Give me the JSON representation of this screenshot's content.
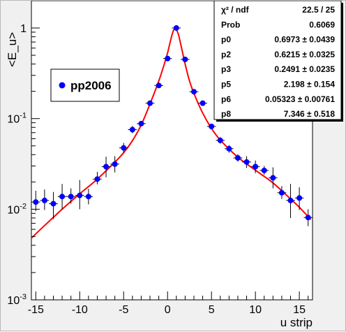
{
  "chart_data": {
    "type": "scatter",
    "xlabel": "u strip",
    "ylabel": "<E_u>",
    "x_range": [
      -15.5,
      16.5
    ],
    "y_range": [
      0.001,
      2.0
    ],
    "y_scale": "log",
    "x_ticks": [
      -15,
      -10,
      -5,
      0,
      5,
      10,
      15
    ],
    "x_tick_labels": [
      "-15",
      "-10",
      "-5",
      "0",
      "5",
      "10",
      "15"
    ],
    "y_ticks": [
      {
        "value": 1,
        "base": "1",
        "exp": ""
      },
      {
        "value": 0.1,
        "base": "10",
        "exp": "-1"
      },
      {
        "value": 0.01,
        "base": "10",
        "exp": "-2"
      },
      {
        "value": 0.001,
        "base": "10",
        "exp": "-3"
      }
    ],
    "legend": {
      "entries": [
        {
          "name": "pp2006",
          "color": "#0000ff"
        }
      ],
      "placement": "upper-left"
    },
    "stats_box": {
      "placement": "top-right",
      "rows": [
        {
          "name": "χ² / ndf",
          "value": "22.5 / 25"
        },
        {
          "name": "Prob",
          "value": "0.6069"
        },
        {
          "name": "p0",
          "value": "0.6973 ± 0.0439"
        },
        {
          "name": "p2",
          "value": "0.6215 ± 0.0325"
        },
        {
          "name": "p3",
          "value": "0.2491 ± 0.0235"
        },
        {
          "name": "p5",
          "value": "2.198 ± 0.154"
        },
        {
          "name": "p6",
          "value": "0.05323 ± 0.00761"
        },
        {
          "name": "p8",
          "value": "7.346 ± 0.518"
        }
      ]
    },
    "series": [
      {
        "name": "pp2006",
        "color": "#0000ff",
        "marker": "circle",
        "points": [
          {
            "x": -15,
            "y": 0.012,
            "ylo": 0.0095,
            "yhi": 0.016
          },
          {
            "x": -14,
            "y": 0.0125,
            "ylo": 0.0098,
            "yhi": 0.0165
          },
          {
            "x": -13,
            "y": 0.0115,
            "ylo": 0.0078,
            "yhi": 0.0155
          },
          {
            "x": -12,
            "y": 0.0138,
            "ylo": 0.01,
            "yhi": 0.019
          },
          {
            "x": -11,
            "y": 0.0138,
            "ylo": 0.0115,
            "yhi": 0.017
          },
          {
            "x": -10,
            "y": 0.0142,
            "ylo": 0.01,
            "yhi": 0.021
          },
          {
            "x": -9,
            "y": 0.0138,
            "ylo": 0.0113,
            "yhi": 0.0168
          },
          {
            "x": -8,
            "y": 0.0215,
            "ylo": 0.0188,
            "yhi": 0.0258
          },
          {
            "x": -7,
            "y": 0.0295,
            "ylo": 0.0225,
            "yhi": 0.038
          },
          {
            "x": -6,
            "y": 0.0315,
            "ylo": 0.0255,
            "yhi": 0.0385
          },
          {
            "x": -5,
            "y": 0.0475,
            "ylo": 0.042,
            "yhi": 0.054
          },
          {
            "x": -4,
            "y": 0.0755,
            "ylo": 0.069,
            "yhi": 0.083
          },
          {
            "x": -3,
            "y": 0.088,
            "ylo": 0.083,
            "yhi": 0.0935
          },
          {
            "x": -2,
            "y": 0.148,
            "ylo": 0.142,
            "yhi": 0.156
          },
          {
            "x": -1,
            "y": 0.232,
            "ylo": 0.224,
            "yhi": 0.24
          },
          {
            "x": 0,
            "y": 0.46,
            "ylo": 0.448,
            "yhi": 0.473
          },
          {
            "x": 1,
            "y": 1.0,
            "ylo": 0.98,
            "yhi": 1.02
          },
          {
            "x": 2,
            "y": 0.45,
            "ylo": 0.438,
            "yhi": 0.462
          },
          {
            "x": 3,
            "y": 0.198,
            "ylo": 0.192,
            "yhi": 0.205
          },
          {
            "x": 4,
            "y": 0.148,
            "ylo": 0.142,
            "yhi": 0.155
          },
          {
            "x": 5,
            "y": 0.082,
            "ylo": 0.078,
            "yhi": 0.0865
          },
          {
            "x": 6,
            "y": 0.0575,
            "ylo": 0.053,
            "yhi": 0.0625
          },
          {
            "x": 7,
            "y": 0.0465,
            "ylo": 0.042,
            "yhi": 0.051
          },
          {
            "x": 8,
            "y": 0.0368,
            "ylo": 0.0335,
            "yhi": 0.0405
          },
          {
            "x": 9,
            "y": 0.0332,
            "ylo": 0.0285,
            "yhi": 0.0385
          },
          {
            "x": 10,
            "y": 0.0295,
            "ylo": 0.025,
            "yhi": 0.0345
          },
          {
            "x": 11,
            "y": 0.0268,
            "ylo": 0.024,
            "yhi": 0.03
          },
          {
            "x": 12,
            "y": 0.0222,
            "ylo": 0.017,
            "yhi": 0.029
          },
          {
            "x": 13,
            "y": 0.0152,
            "ylo": 0.013,
            "yhi": 0.018
          },
          {
            "x": 14,
            "y": 0.0125,
            "ylo": 0.008,
            "yhi": 0.019
          },
          {
            "x": 15,
            "y": 0.0133,
            "ylo": 0.0098,
            "yhi": 0.0175
          },
          {
            "x": 16,
            "y": 0.0081,
            "ylo": 0.0065,
            "yhi": 0.01
          }
        ]
      },
      {
        "name": "fit",
        "color": "#ff0000",
        "type": "line",
        "points": [
          {
            "x": -15.5,
            "y": 0.0048
          },
          {
            "x": -14,
            "y": 0.0066
          },
          {
            "x": -12,
            "y": 0.01
          },
          {
            "x": -10,
            "y": 0.0148
          },
          {
            "x": -8,
            "y": 0.0215
          },
          {
            "x": -6,
            "y": 0.033
          },
          {
            "x": -5,
            "y": 0.042
          },
          {
            "x": -4,
            "y": 0.057
          },
          {
            "x": -3,
            "y": 0.085
          },
          {
            "x": -2,
            "y": 0.145
          },
          {
            "x": -1,
            "y": 0.26
          },
          {
            "x": -0.3,
            "y": 0.42
          },
          {
            "x": 0,
            "y": 0.53
          },
          {
            "x": 0.3,
            "y": 0.7
          },
          {
            "x": 0.6,
            "y": 0.9
          },
          {
            "x": 0.85,
            "y": 0.98
          },
          {
            "x": 1.2,
            "y": 0.87
          },
          {
            "x": 1.5,
            "y": 0.66
          },
          {
            "x": 2,
            "y": 0.4
          },
          {
            "x": 2.5,
            "y": 0.26
          },
          {
            "x": 3,
            "y": 0.19
          },
          {
            "x": 4,
            "y": 0.115
          },
          {
            "x": 5,
            "y": 0.078
          },
          {
            "x": 6,
            "y": 0.058
          },
          {
            "x": 8,
            "y": 0.0375
          },
          {
            "x": 10,
            "y": 0.027
          },
          {
            "x": 12,
            "y": 0.0195
          },
          {
            "x": 14,
            "y": 0.013
          },
          {
            "x": 15,
            "y": 0.0105
          },
          {
            "x": 16.3,
            "y": 0.0077
          }
        ]
      }
    ]
  }
}
